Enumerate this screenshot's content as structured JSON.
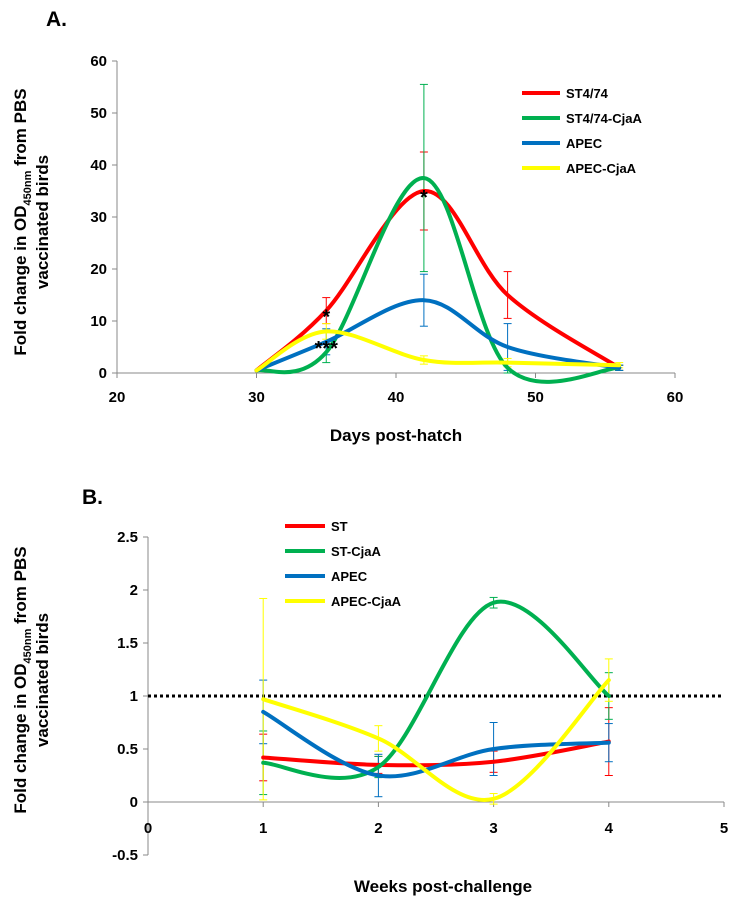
{
  "chart_data": [
    {
      "type": "line",
      "panel_label": "A.",
      "xlabel": "Days post-hatch",
      "ylabel_parts": [
        "Fold change in OD",
        "450nm",
        " from PBS",
        "vaccinated birds"
      ],
      "xlim": [
        20,
        60
      ],
      "ylim": [
        0,
        60
      ],
      "xticks": [
        20,
        30,
        40,
        50,
        60
      ],
      "yticks": [
        0,
        10,
        20,
        30,
        40,
        50,
        60
      ],
      "legend_position": "top-right",
      "series": [
        {
          "name": "ST4/74",
          "color": "#ff0000",
          "x": [
            30,
            35,
            42,
            48,
            56
          ],
          "y": [
            0.5,
            12,
            35,
            15,
            1
          ],
          "err": [
            0,
            2.5,
            7.5,
            4.5,
            0.5
          ]
        },
        {
          "name": "ST4/74-CjaA",
          "color": "#00b050",
          "x": [
            30,
            35,
            42,
            48,
            56
          ],
          "y": [
            0.5,
            4,
            37.5,
            1,
            1
          ],
          "err": [
            0,
            2,
            18,
            1,
            0.5
          ]
        },
        {
          "name": "APEC",
          "color": "#0070c0",
          "x": [
            30,
            35,
            42,
            48,
            56
          ],
          "y": [
            0.5,
            6,
            14,
            5,
            1
          ],
          "err": [
            0,
            2.5,
            5,
            4.5,
            0.5
          ]
        },
        {
          "name": "APEC-CjaA",
          "color": "#ffff00",
          "x": [
            30,
            35,
            42,
            48,
            56
          ],
          "y": [
            0.5,
            8,
            2.5,
            2,
            1.5
          ],
          "err": [
            0,
            1.5,
            0.8,
            0.8,
            0.5
          ]
        }
      ],
      "annotations": [
        {
          "text": "*",
          "x": 35,
          "y": 12
        },
        {
          "text": "***",
          "x": 35,
          "y": 6
        },
        {
          "text": "*",
          "x": 42,
          "y": 35
        }
      ]
    },
    {
      "type": "line",
      "panel_label": "B.",
      "xlabel": "Weeks post-challenge",
      "ylabel_parts": [
        "Fold change in OD",
        "450nm",
        " from PBS",
        "vaccinated birds"
      ],
      "xlim": [
        0,
        5
      ],
      "ylim": [
        -0.5,
        2.5
      ],
      "xticks": [
        0,
        1,
        2,
        3,
        4,
        5
      ],
      "yticks": [
        -0.5,
        0,
        0.5,
        1,
        1.5,
        2,
        2.5
      ],
      "reference_line": 1,
      "legend_position": "top-center",
      "series": [
        {
          "name": "ST",
          "color": "#ff0000",
          "x": [
            1,
            2,
            3,
            4
          ],
          "y": [
            0.42,
            0.35,
            0.38,
            0.57
          ],
          "err": [
            0.22,
            0.08,
            0.1,
            0.32
          ]
        },
        {
          "name": "ST-CjaA",
          "color": "#00b050",
          "x": [
            1,
            2,
            3,
            4
          ],
          "y": [
            0.37,
            0.33,
            1.88,
            1.0
          ],
          "err": [
            0.3,
            0.1,
            0.05,
            0.22
          ]
        },
        {
          "name": "APEC",
          "color": "#0070c0",
          "x": [
            1,
            2,
            3,
            4
          ],
          "y": [
            0.85,
            0.25,
            0.5,
            0.56
          ],
          "err": [
            0.3,
            0.2,
            0.25,
            0.18
          ]
        },
        {
          "name": "APEC-CjaA",
          "color": "#ffff00",
          "x": [
            1,
            2,
            3,
            4
          ],
          "y": [
            0.97,
            0.6,
            0.03,
            1.15
          ],
          "err": [
            0.95,
            0.12,
            0.05,
            0.2
          ]
        }
      ]
    }
  ]
}
